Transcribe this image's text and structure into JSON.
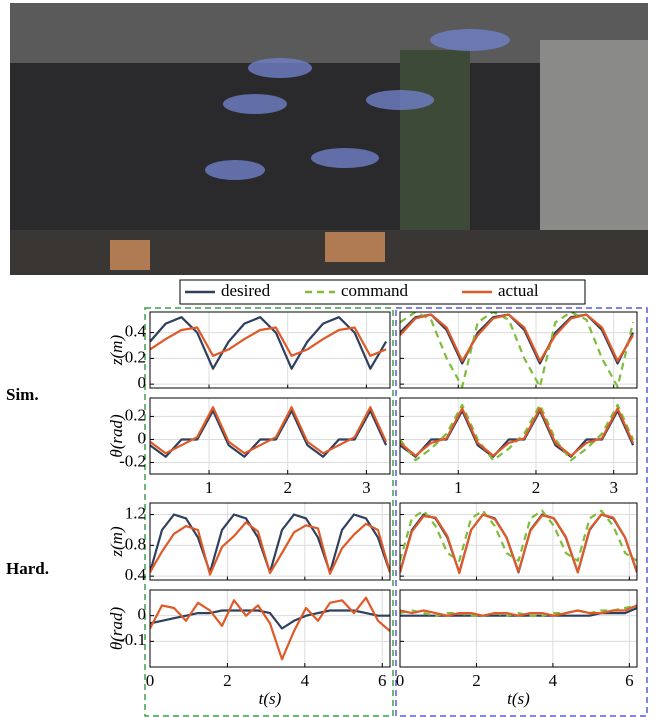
{
  "row_labels": [
    "Sim.",
    "Hard."
  ],
  "chart_data": [
    {
      "type": "line",
      "ylabel": "z(m)",
      "x": [
        0.25,
        0.45,
        0.65,
        0.85,
        1.05,
        1.25,
        1.45,
        1.65,
        1.85,
        2.05,
        2.25,
        2.45,
        2.65,
        2.85,
        3.05,
        3.25
      ],
      "xlim": [
        0.25,
        3.3
      ],
      "xticks": [
        1,
        2,
        3
      ],
      "show_xtick_labels": false,
      "ylim": [
        -0.03,
        0.56
      ],
      "yticks": [
        0,
        0.2,
        0.4
      ],
      "show_ytick_labels": true,
      "grid": true,
      "series": [
        {
          "name": "desired",
          "color": "#2f3f5e",
          "values": [
            0.33,
            0.47,
            0.52,
            0.4,
            0.12,
            0.33,
            0.47,
            0.52,
            0.4,
            0.12,
            0.33,
            0.47,
            0.52,
            0.4,
            0.12,
            0.33
          ]
        },
        {
          "name": "actual",
          "color": "#e05a28",
          "values": [
            0.27,
            0.35,
            0.42,
            0.44,
            0.22,
            0.27,
            0.35,
            0.42,
            0.44,
            0.22,
            0.27,
            0.35,
            0.42,
            0.44,
            0.22,
            0.27
          ]
        }
      ]
    },
    {
      "type": "line",
      "x": [
        0.25,
        0.45,
        0.65,
        0.85,
        1.05,
        1.25,
        1.45,
        1.65,
        1.85,
        2.05,
        2.25,
        2.45,
        2.65,
        2.85,
        3.05,
        3.25
      ],
      "xlim": [
        0.25,
        3.3
      ],
      "xticks": [
        1,
        2,
        3
      ],
      "show_xtick_labels": false,
      "ylim": [
        -0.03,
        0.56
      ],
      "yticks": [
        0,
        0.2,
        0.4
      ],
      "show_ytick_labels": false,
      "grid": true,
      "series": [
        {
          "name": "desired",
          "color": "#2f3f5e",
          "values": [
            0.4,
            0.52,
            0.54,
            0.42,
            0.16,
            0.4,
            0.52,
            0.54,
            0.42,
            0.16,
            0.4,
            0.52,
            0.54,
            0.42,
            0.16,
            0.4
          ]
        },
        {
          "name": "command",
          "color": "#7dbd3b",
          "dashed": true,
          "values": [
            0.48,
            0.56,
            0.5,
            0.2,
            -0.02,
            0.48,
            0.56,
            0.5,
            0.2,
            -0.02,
            0.48,
            0.56,
            0.5,
            0.2,
            -0.02,
            0.48
          ]
        },
        {
          "name": "actual",
          "color": "#e05a28",
          "values": [
            0.38,
            0.51,
            0.54,
            0.44,
            0.18,
            0.38,
            0.51,
            0.54,
            0.44,
            0.18,
            0.38,
            0.51,
            0.54,
            0.44,
            0.18,
            0.38
          ]
        }
      ]
    },
    {
      "type": "line",
      "ylabel": "θ(rad)",
      "x": [
        0.25,
        0.45,
        0.65,
        0.85,
        1.05,
        1.25,
        1.45,
        1.65,
        1.85,
        2.05,
        2.25,
        2.45,
        2.65,
        2.85,
        3.05,
        3.25
      ],
      "xlim": [
        0.25,
        3.3
      ],
      "xticks": [
        1,
        2,
        3
      ],
      "show_xtick_labels": true,
      "ylim": [
        -0.3,
        0.36
      ],
      "yticks": [
        -0.2,
        0,
        0.2
      ],
      "show_ytick_labels": true,
      "grid": true,
      "series": [
        {
          "name": "desired",
          "color": "#2f3f5e",
          "values": [
            -0.05,
            -0.15,
            0,
            0,
            0.25,
            -0.05,
            -0.15,
            0,
            0,
            0.25,
            -0.05,
            -0.15,
            0,
            0,
            0.25,
            -0.05
          ]
        },
        {
          "name": "actual",
          "color": "#e05a28",
          "values": [
            -0.02,
            -0.12,
            -0.05,
            0.02,
            0.28,
            -0.02,
            -0.12,
            -0.05,
            0.02,
            0.28,
            -0.02,
            -0.12,
            -0.05,
            0.02,
            0.28,
            -0.02
          ]
        }
      ]
    },
    {
      "type": "line",
      "x": [
        0.25,
        0.45,
        0.65,
        0.85,
        1.05,
        1.25,
        1.45,
        1.65,
        1.85,
        2.05,
        2.25,
        2.45,
        2.65,
        2.85,
        3.05,
        3.25
      ],
      "xlim": [
        0.25,
        3.3
      ],
      "xticks": [
        1,
        2,
        3
      ],
      "show_xtick_labels": true,
      "ylim": [
        -0.3,
        0.36
      ],
      "yticks": [
        -0.2,
        0,
        0.2
      ],
      "show_ytick_labels": false,
      "grid": true,
      "series": [
        {
          "name": "desired",
          "color": "#2f3f5e",
          "values": [
            -0.05,
            -0.15,
            0,
            0,
            0.25,
            -0.05,
            -0.15,
            0,
            0,
            0.25,
            -0.05,
            -0.15,
            0,
            0,
            0.25,
            -0.05
          ]
        },
        {
          "name": "command",
          "color": "#7dbd3b",
          "dashed": true,
          "values": [
            0,
            -0.18,
            -0.08,
            0.05,
            0.3,
            0,
            -0.18,
            -0.08,
            0.05,
            0.3,
            0,
            -0.18,
            -0.08,
            0.05,
            0.3,
            0
          ]
        },
        {
          "name": "actual",
          "color": "#e05a28",
          "values": [
            -0.03,
            -0.14,
            -0.03,
            0.01,
            0.27,
            -0.03,
            -0.14,
            -0.03,
            0.01,
            0.27,
            -0.03,
            -0.14,
            -0.03,
            0.01,
            0.27,
            -0.03
          ]
        }
      ]
    },
    {
      "type": "line",
      "ylabel": "z(m)",
      "x": [
        0,
        0.31,
        0.62,
        0.93,
        1.24,
        1.55,
        1.86,
        2.17,
        2.48,
        2.79,
        3.1,
        3.41,
        3.72,
        4.03,
        4.34,
        4.65,
        4.96,
        5.27,
        5.58,
        5.89,
        6.2
      ],
      "xlim": [
        0,
        6.2
      ],
      "xticks": [
        0,
        2,
        4,
        6
      ],
      "show_xtick_labels": false,
      "ylim": [
        0.35,
        1.35
      ],
      "yticks": [
        0.4,
        0.8,
        1.2
      ],
      "show_ytick_labels": true,
      "grid": true,
      "series": [
        {
          "name": "desired",
          "color": "#2f3f5e",
          "values": [
            0.45,
            1.0,
            1.2,
            1.15,
            0.9,
            0.45,
            1.0,
            1.2,
            1.15,
            0.9,
            0.45,
            1.0,
            1.2,
            1.15,
            0.9,
            0.45,
            1.0,
            1.2,
            1.15,
            0.9,
            0.45
          ]
        },
        {
          "name": "actual",
          "color": "#e05a28",
          "values": [
            0.45,
            0.72,
            0.95,
            1.05,
            1.0,
            0.42,
            0.78,
            0.92,
            1.1,
            0.98,
            0.44,
            0.7,
            0.97,
            1.06,
            1.02,
            0.43,
            0.76,
            0.94,
            1.08,
            1.0,
            0.45
          ]
        }
      ]
    },
    {
      "type": "line",
      "x": [
        0,
        0.31,
        0.62,
        0.93,
        1.24,
        1.55,
        1.86,
        2.17,
        2.48,
        2.79,
        3.1,
        3.41,
        3.72,
        4.03,
        4.34,
        4.65,
        4.96,
        5.27,
        5.58,
        5.89,
        6.2
      ],
      "xlim": [
        0,
        6.2
      ],
      "xticks": [
        0,
        2,
        4,
        6
      ],
      "show_xtick_labels": false,
      "ylim": [
        0.35,
        1.35
      ],
      "yticks": [
        0.4,
        0.8,
        1.2
      ],
      "show_ytick_labels": false,
      "grid": true,
      "series": [
        {
          "name": "desired",
          "color": "#2f3f5e",
          "values": [
            0.45,
            1.0,
            1.2,
            1.15,
            0.9,
            0.45,
            1.0,
            1.2,
            1.15,
            0.9,
            0.45,
            1.0,
            1.2,
            1.15,
            0.9,
            0.45,
            1.0,
            1.2,
            1.15,
            0.9,
            0.45
          ]
        },
        {
          "name": "command",
          "color": "#7dbd3b",
          "dashed": true,
          "values": [
            0.6,
            1.15,
            1.25,
            1.05,
            0.7,
            0.6,
            1.15,
            1.25,
            1.05,
            0.7,
            0.6,
            1.15,
            1.25,
            1.05,
            0.7,
            0.6,
            1.15,
            1.25,
            1.05,
            0.7,
            0.6
          ]
        },
        {
          "name": "actual",
          "color": "#e05a28",
          "values": [
            0.45,
            0.98,
            1.18,
            1.16,
            0.92,
            0.44,
            1.0,
            1.2,
            1.14,
            0.9,
            0.46,
            0.99,
            1.19,
            1.15,
            0.91,
            0.45,
            1.01,
            1.2,
            1.16,
            0.9,
            0.46
          ]
        }
      ]
    },
    {
      "type": "line",
      "ylabel": "θ(rad)",
      "xlabel": "t(s)",
      "x": [
        0,
        0.31,
        0.62,
        0.93,
        1.24,
        1.55,
        1.86,
        2.17,
        2.48,
        2.79,
        3.1,
        3.41,
        3.72,
        4.03,
        4.34,
        4.65,
        4.96,
        5.27,
        5.58,
        5.89,
        6.2
      ],
      "xlim": [
        0,
        6.2
      ],
      "xticks": [
        0,
        2,
        4,
        6
      ],
      "show_xtick_labels": true,
      "ylim": [
        -0.2,
        0.1
      ],
      "yticks": [
        -0.1,
        0
      ],
      "show_ytick_labels": true,
      "grid": true,
      "series": [
        {
          "name": "desired",
          "color": "#2f3f5e",
          "values": [
            -0.03,
            -0.02,
            -0.01,
            0,
            0.01,
            0.01,
            0.02,
            0.02,
            0.02,
            0.02,
            0.01,
            -0.05,
            -0.02,
            0,
            0.01,
            0.02,
            0.02,
            0.02,
            0.01,
            0,
            0
          ]
        },
        {
          "name": "actual",
          "color": "#e05a28",
          "values": [
            -0.05,
            0.04,
            0.03,
            -0.02,
            0.05,
            0.02,
            -0.04,
            0.06,
            0,
            0.04,
            -0.03,
            -0.17,
            -0.06,
            0.03,
            -0.02,
            0.05,
            0.06,
            0.01,
            0.07,
            -0.02,
            -0.06
          ]
        }
      ]
    },
    {
      "type": "line",
      "xlabel": "t(s)",
      "x": [
        0,
        0.31,
        0.62,
        0.93,
        1.24,
        1.55,
        1.86,
        2.17,
        2.48,
        2.79,
        3.1,
        3.41,
        3.72,
        4.03,
        4.34,
        4.65,
        4.96,
        5.27,
        5.58,
        5.89,
        6.2
      ],
      "xlim": [
        0,
        6.2
      ],
      "xticks": [
        0,
        2,
        4,
        6
      ],
      "show_xtick_labels": true,
      "ylim": [
        -0.2,
        0.1
      ],
      "yticks": [
        -0.1,
        0
      ],
      "show_ytick_labels": false,
      "grid": true,
      "series": [
        {
          "name": "desired",
          "color": "#2f3f5e",
          "values": [
            0,
            0,
            0,
            0,
            0,
            0,
            0,
            0,
            0,
            0,
            0,
            0,
            0,
            0,
            0,
            0,
            0,
            0.01,
            0.01,
            0.01,
            0.03
          ]
        },
        {
          "name": "command",
          "color": "#7dbd3b",
          "dashed": true,
          "values": [
            0.01,
            0.02,
            0.01,
            0,
            0.01,
            0.01,
            0,
            0,
            0.01,
            0,
            0.01,
            0,
            0,
            0.01,
            0.01,
            0.02,
            0.01,
            0.02,
            0.02,
            0.03,
            0.04
          ]
        },
        {
          "name": "actual",
          "color": "#e05a28",
          "values": [
            0.02,
            0.01,
            0.02,
            0.01,
            0,
            0.01,
            0.01,
            0,
            0.01,
            0.01,
            0,
            0.01,
            0.01,
            0,
            0.01,
            0.02,
            0.01,
            0.01,
            0.02,
            0.02,
            0.04
          ]
        }
      ]
    }
  ]
}
